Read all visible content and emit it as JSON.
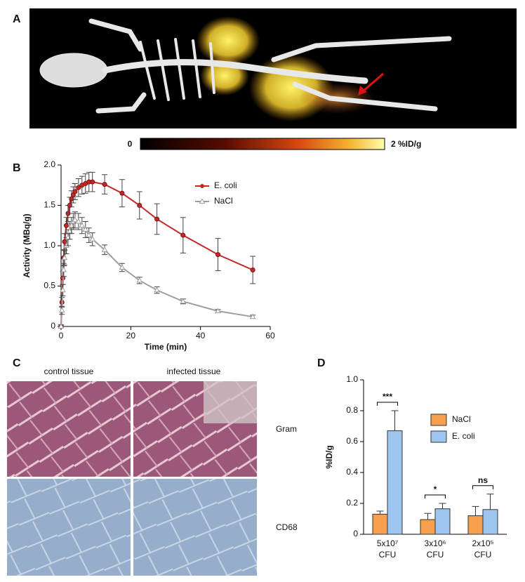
{
  "panel_labels": [
    "A",
    "B",
    "C",
    "D"
  ],
  "panel_a": {
    "colorbar_labels": [
      "0",
      "2 %ID/g"
    ]
  },
  "panel_c": {
    "columns": [
      "control tissue",
      "infected tissue"
    ],
    "rows": [
      "Gram",
      "CD68"
    ]
  },
  "chart_data": [
    {
      "type": "line",
      "x": [
        0,
        0.25,
        0.5,
        0.75,
        1,
        1.5,
        2,
        2.5,
        3,
        3.5,
        4,
        5,
        6,
        7,
        8,
        9,
        12.5,
        17.5,
        22.5,
        27.5,
        35,
        45,
        55
      ],
      "series": [
        {
          "name": "E. coli",
          "color": "#c62828",
          "marker": "circle",
          "values": [
            0,
            0.3,
            0.6,
            0.85,
            1.05,
            1.25,
            1.4,
            1.5,
            1.58,
            1.63,
            1.67,
            1.72,
            1.75,
            1.77,
            1.79,
            1.79,
            1.76,
            1.65,
            1.5,
            1.33,
            1.13,
            0.89,
            0.7
          ],
          "errors": [
            0.02,
            0.06,
            0.08,
            0.1,
            0.1,
            0.1,
            0.1,
            0.1,
            0.1,
            0.1,
            0.1,
            0.11,
            0.11,
            0.12,
            0.12,
            0.12,
            0.12,
            0.17,
            0.17,
            0.19,
            0.22,
            0.2,
            0.17
          ]
        },
        {
          "name": "NaCl",
          "color": "#9e9e9e",
          "marker": "triangle",
          "values": [
            0,
            0.2,
            0.45,
            0.7,
            0.85,
            1.0,
            1.1,
            1.18,
            1.25,
            1.3,
            1.32,
            1.3,
            1.25,
            1.2,
            1.13,
            1.08,
            0.95,
            0.73,
            0.57,
            0.45,
            0.31,
            0.19,
            0.12
          ],
          "errors": [
            0.02,
            0.05,
            0.07,
            0.08,
            0.09,
            0.1,
            0.1,
            0.1,
            0.1,
            0.1,
            0.1,
            0.1,
            0.1,
            0.1,
            0.09,
            0.08,
            0.06,
            0.05,
            0.04,
            0.04,
            0.03,
            0.02,
            0.02
          ]
        }
      ],
      "xlabel": "Time (min)",
      "ylabel": "Activity (MBq/g)",
      "xlim": [
        0,
        60
      ],
      "xticks": [
        0,
        20,
        40,
        60
      ],
      "ylim": [
        0,
        2.0
      ],
      "yticks": [
        0,
        0.5,
        {
          "value": 1,
          "label": "1.0"
        },
        1.5,
        {
          "value": 2,
          "label": "2.0"
        }
      ]
    },
    {
      "type": "bar",
      "categories": [
        [
          "5x10⁷",
          "CFU"
        ],
        [
          "3x10⁶",
          "CFU"
        ],
        [
          "2x10⁵",
          "CFU"
        ]
      ],
      "series": [
        {
          "name": "NaCl",
          "color": "#f6a04d",
          "values": [
            0.13,
            0.095,
            0.12
          ],
          "errors": [
            0.02,
            0.04,
            0.06
          ]
        },
        {
          "name": "E. coli",
          "color": "#9cc5f0",
          "values": [
            0.67,
            0.165,
            0.16
          ],
          "errors": [
            0.13,
            0.035,
            0.1
          ]
        }
      ],
      "annotations": [
        "***",
        "*",
        "ns"
      ],
      "ylabel": "%ID/g",
      "ylim": [
        0,
        1.0
      ],
      "yticks": [
        0,
        0.2,
        0.4,
        0.6,
        0.8,
        {
          "value": 1,
          "label": "1.0"
        }
      ]
    }
  ]
}
